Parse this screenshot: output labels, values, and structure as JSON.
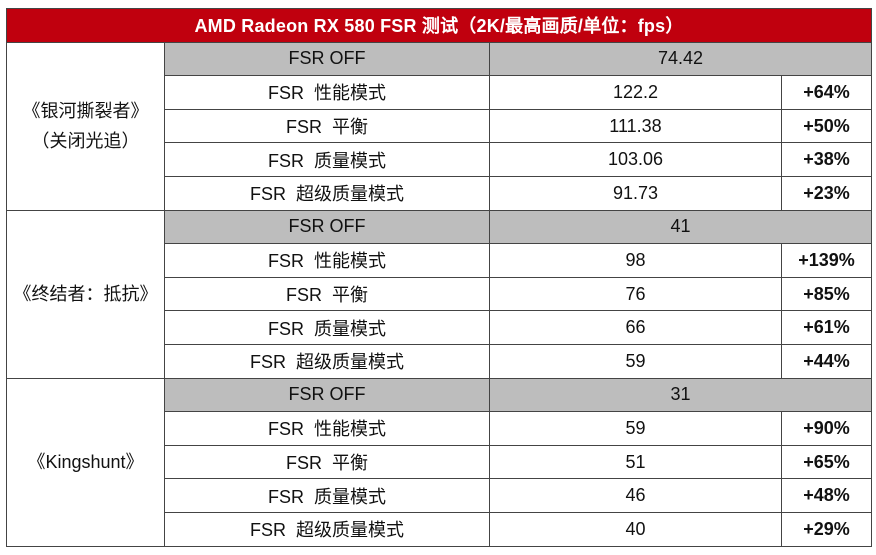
{
  "title": "AMD Radeon RX 580 FSR 测试（2K/最高画质/单位：fps）",
  "colors": {
    "header_bg": "#c0000e",
    "off_row_bg": "#bdbdbd",
    "gain_text": "#d0000c"
  },
  "groups": [
    {
      "game": "《银河撕裂者》",
      "note": "（关闭光追）",
      "rows": [
        {
          "setting": "FSR OFF",
          "fps": "74.42",
          "gain": ""
        },
        {
          "setting": "FSR  性能模式",
          "fps": "122.2",
          "gain": "+64%"
        },
        {
          "setting": "FSR  平衡",
          "fps": "111.38",
          "gain": "+50%"
        },
        {
          "setting": "FSR  质量模式",
          "fps": "103.06",
          "gain": "+38%"
        },
        {
          "setting": "FSR  超级质量模式",
          "fps": "91.73",
          "gain": "+23%"
        }
      ]
    },
    {
      "game": "《终结者：抵抗》",
      "note": "",
      "rows": [
        {
          "setting": "FSR OFF",
          "fps": "41",
          "gain": ""
        },
        {
          "setting": "FSR  性能模式",
          "fps": "98",
          "gain": "+139%"
        },
        {
          "setting": "FSR  平衡",
          "fps": "76",
          "gain": "+85%"
        },
        {
          "setting": "FSR  质量模式",
          "fps": "66",
          "gain": "+61%"
        },
        {
          "setting": "FSR  超级质量模式",
          "fps": "59",
          "gain": "+44%"
        }
      ]
    },
    {
      "game": "《Kingshunt》",
      "note": "",
      "rows": [
        {
          "setting": "FSR OFF",
          "fps": "31",
          "gain": ""
        },
        {
          "setting": "FSR  性能模式",
          "fps": "59",
          "gain": "+90%"
        },
        {
          "setting": "FSR  平衡",
          "fps": "51",
          "gain": "+65%"
        },
        {
          "setting": "FSR  质量模式",
          "fps": "46",
          "gain": "+48%"
        },
        {
          "setting": "FSR  超级质量模式",
          "fps": "40",
          "gain": "+29%"
        }
      ]
    }
  ]
}
